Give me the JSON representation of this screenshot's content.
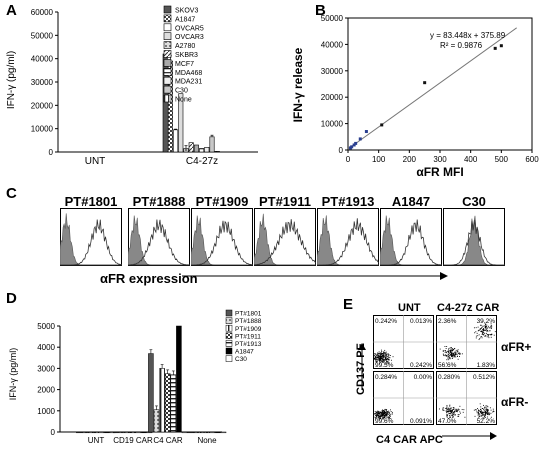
{
  "panels": {
    "a": {
      "letter": "A",
      "ylabel": "IFN-γ (pg/ml)",
      "yticks": [
        "0",
        "10000",
        "20000",
        "30000",
        "40000",
        "50000",
        "60000"
      ],
      "groups": [
        "UNT",
        "C4-27z"
      ],
      "legend": [
        "SKOV3",
        "A1847",
        "OVCAR5",
        "OVCAR3",
        "A2780",
        "SKBR3",
        "MCF7",
        "MDA468",
        "MDA231",
        "C30",
        "None"
      ]
    },
    "b": {
      "letter": "B",
      "ylabel": "IFN-γ release",
      "xlabel": "αFR MFI",
      "equation": "y = 83.448x + 375.89",
      "r2": "R² = 0.9876",
      "xticks": [
        "0",
        "100",
        "200",
        "300",
        "400",
        "500",
        "600"
      ],
      "yticks": [
        "0",
        "10000",
        "20000",
        "30000",
        "40000",
        "50000"
      ]
    },
    "c": {
      "letter": "C",
      "samples": [
        "PT#1801",
        "PT#1888",
        "PT#1909",
        "PT#1911",
        "PT#1913",
        "A1847",
        "C30"
      ],
      "xlabel": "αFR expression"
    },
    "d": {
      "letter": "D",
      "ylabel": "IFN-γ (pg/ml)",
      "yticks": [
        "0",
        "1000",
        "2000",
        "3000",
        "4000",
        "5000"
      ],
      "groups": [
        "UNT",
        "CD19 CAR",
        "C4 CAR",
        "None"
      ],
      "legend": [
        "PT#1801",
        "PT#1888",
        "PT#1909",
        "PT#1911",
        "PT#1913",
        "A1847",
        "C30"
      ]
    },
    "e": {
      "letter": "E",
      "col_headers": [
        "UNT",
        "C4-27z CAR"
      ],
      "row_labels": [
        "αFR+",
        "αFR-"
      ],
      "ylabel": "CD137 PE",
      "xlabel": "C4  CAR APC",
      "quadrants": [
        {
          "tl": "0.242%",
          "tr": "0.013%",
          "bl": "99.5%",
          "br": "0.242%"
        },
        {
          "tl": "2.36%",
          "tr": "39.2%",
          "bl": "56.6%",
          "br": "1.83%"
        },
        {
          "tl": "0.284%",
          "tr": "0.00%",
          "bl": "99.6%",
          "br": "0.091%"
        },
        {
          "tl": "0.280%",
          "tr": "0.512%",
          "bl": "47.0%",
          "br": "52.2%"
        }
      ]
    }
  },
  "chart_data": [
    {
      "type": "bar",
      "title": "",
      "ylabel": "IFN-γ (pg/ml)",
      "categories": [
        "UNT",
        "C4-27z"
      ],
      "ylim": [
        0,
        60000
      ],
      "series": [
        {
          "name": "SKOV3",
          "values": [
            0,
            42000
          ]
        },
        {
          "name": "A1847",
          "values": [
            0,
            39000
          ]
        },
        {
          "name": "OVCAR5",
          "values": [
            0,
            9500
          ]
        },
        {
          "name": "OVCAR3",
          "values": [
            0,
            25000
          ]
        },
        {
          "name": "A2780",
          "values": [
            0,
            1500
          ]
        },
        {
          "name": "SKBR3",
          "values": [
            0,
            4000
          ]
        },
        {
          "name": "MCF7",
          "values": [
            0,
            3000
          ]
        },
        {
          "name": "MDA468",
          "values": [
            0,
            1500
          ]
        },
        {
          "name": "MDA231",
          "values": [
            0,
            2000
          ]
        },
        {
          "name": "C30",
          "values": [
            0,
            6500
          ]
        },
        {
          "name": "None",
          "values": [
            0,
            300
          ]
        }
      ],
      "errors": [
        0,
        2200,
        300,
        0,
        1200,
        0,
        0,
        0,
        0,
        700,
        0
      ]
    },
    {
      "type": "scatter",
      "xlabel": "αFR MFI",
      "ylabel": "IFN-γ release",
      "xlim": [
        0,
        600
      ],
      "ylim": [
        0,
        50000
      ],
      "points": [
        {
          "x": 8,
          "y": 800
        },
        {
          "x": 12,
          "y": 1200
        },
        {
          "x": 20,
          "y": 1900
        },
        {
          "x": 25,
          "y": 2500
        },
        {
          "x": 40,
          "y": 4200
        },
        {
          "x": 60,
          "y": 7000
        },
        {
          "x": 110,
          "y": 9500
        },
        {
          "x": 250,
          "y": 25500
        },
        {
          "x": 480,
          "y": 38500
        },
        {
          "x": 500,
          "y": 39500
        }
      ],
      "fit": {
        "slope": 83.448,
        "intercept": 375.89,
        "r2": 0.9876
      }
    },
    {
      "type": "bar",
      "title": "",
      "ylabel": "IFN-γ (pg/ml)",
      "categories": [
        "UNT",
        "CD19 CAR",
        "C4 CAR",
        "None"
      ],
      "ylim": [
        0,
        5000
      ],
      "series": [
        {
          "name": "PT#1801",
          "values": [
            0,
            0,
            3700,
            0
          ]
        },
        {
          "name": "PT#1888",
          "values": [
            0,
            0,
            1050,
            0
          ]
        },
        {
          "name": "PT#1909",
          "values": [
            0,
            0,
            3000,
            0
          ]
        },
        {
          "name": "PT#1911",
          "values": [
            0,
            0,
            2750,
            0
          ]
        },
        {
          "name": "PT#1913",
          "values": [
            0,
            0,
            2700,
            0
          ]
        },
        {
          "name": "A1847",
          "values": [
            0,
            0,
            5000,
            0
          ]
        },
        {
          "name": "C30",
          "values": [
            0,
            0,
            0,
            0
          ]
        }
      ]
    }
  ]
}
